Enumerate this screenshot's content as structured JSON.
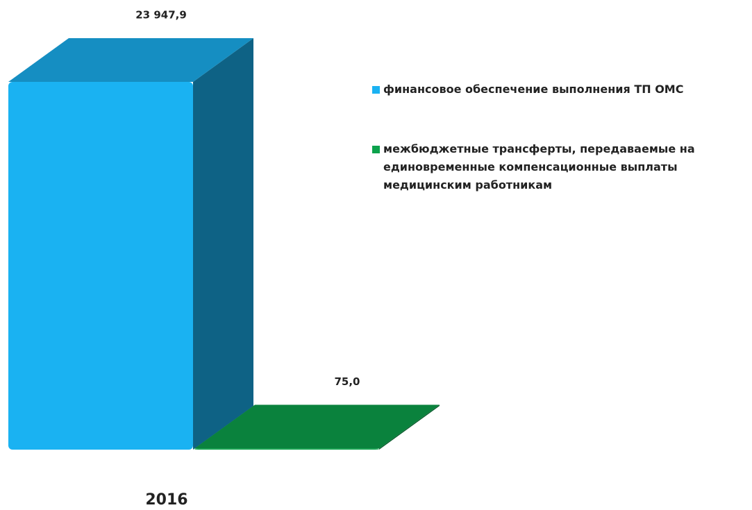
{
  "chart_data": {
    "type": "bar3d",
    "categories": [
      "2016"
    ],
    "series": [
      {
        "name": "финансовое обеспечение выполнения ТП ОМС",
        "color": "#1ab2f2",
        "values": [
          23947.9
        ],
        "value_labels": [
          "23 947,9"
        ]
      },
      {
        "name": "межбюджетные трансферты, передаваемые на единовременные компенсационные выплаты медицинским работникам",
        "color": "#0ca24c",
        "values": [
          75.0
        ],
        "value_labels": [
          "75,0"
        ]
      }
    ],
    "legend": "right"
  }
}
